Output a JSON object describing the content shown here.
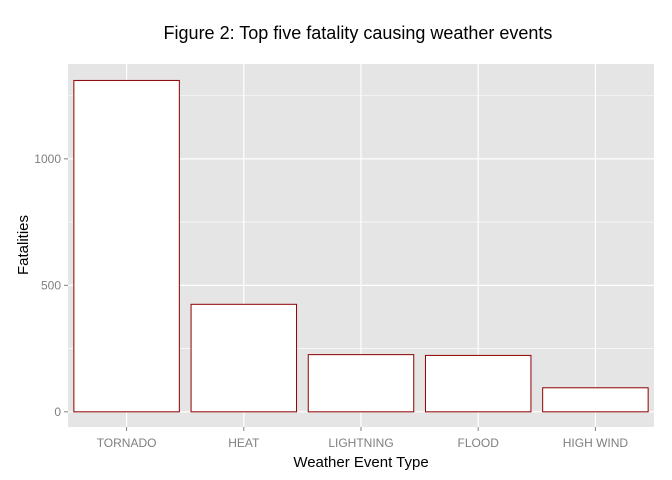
{
  "chart_data": {
    "type": "bar",
    "title": "Figure 2: Top five fatality causing weather events",
    "xlabel": "Weather Event Type",
    "ylabel": "Fatalities",
    "categories": [
      "TORNADO",
      "HEAT",
      "LIGHTNING",
      "FLOOD",
      "HIGH WIND"
    ],
    "values": [
      1310,
      425,
      226,
      223,
      95
    ],
    "ylim": [
      -60,
      1375
    ],
    "yticks": [
      0,
      500,
      1000
    ],
    "grid": true,
    "colors": {
      "panel_background": "#e5e5e5",
      "gridline": "#ffffff",
      "bar_fill": "#ffffff",
      "bar_outline": "#8b0000",
      "tick_text": "#7f7f7f"
    }
  }
}
